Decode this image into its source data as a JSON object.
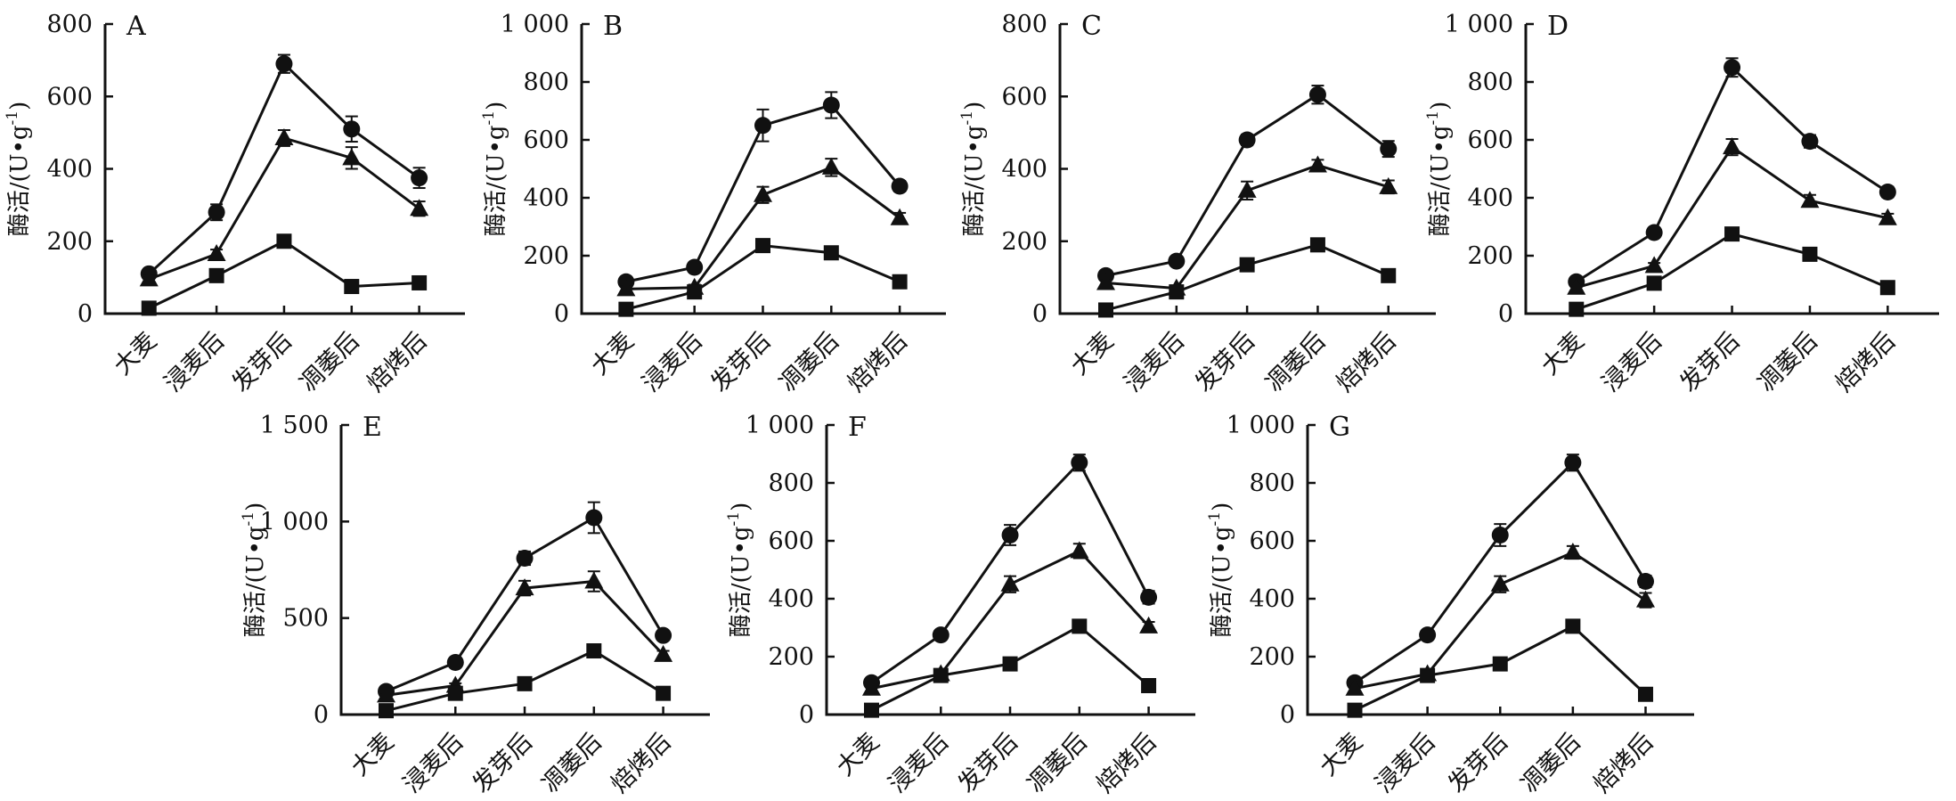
{
  "figure": {
    "ylabel": "酶活/(U•g⁻¹)",
    "x_categories": [
      "大麦",
      "浸麦后",
      "发芽后",
      "凋萎后",
      "焙烤后"
    ],
    "marker_legend": [
      "circle-series",
      "triangle-series",
      "square-series"
    ],
    "ink_color": "#111111",
    "background_color": "#ffffff"
  },
  "chart_data": [
    {
      "type": "line",
      "panel": "A",
      "ylabel": "酶活/(U•g⁻¹)",
      "categories": [
        "大麦",
        "浸麦后",
        "发芽后",
        "凋萎后",
        "焙烤后"
      ],
      "ylim": [
        0,
        800
      ],
      "yticks": [
        0,
        200,
        400,
        600,
        800
      ],
      "ytick_labels": [
        "0",
        "200",
        "400",
        "600",
        "800"
      ],
      "grid": false,
      "legend": "none",
      "series": [
        {
          "name": "circle-series",
          "marker": "circle",
          "values": [
            110,
            280,
            690,
            510,
            375
          ],
          "errors": [
            12,
            22,
            25,
            35,
            28
          ]
        },
        {
          "name": "triangle-series",
          "marker": "triangle",
          "values": [
            95,
            165,
            485,
            430,
            290
          ],
          "errors": [
            10,
            12,
            22,
            30,
            20
          ]
        },
        {
          "name": "square-series",
          "marker": "square",
          "values": [
            15,
            105,
            200,
            75,
            85
          ],
          "errors": [
            0,
            0,
            0,
            0,
            0
          ]
        }
      ]
    },
    {
      "type": "line",
      "panel": "B",
      "ylabel": "酶活/(U•g⁻¹)",
      "categories": [
        "大麦",
        "浸麦后",
        "发芽后",
        "凋萎后",
        "焙烤后"
      ],
      "ylim": [
        0,
        1000
      ],
      "yticks": [
        0,
        200,
        400,
        600,
        800,
        1000
      ],
      "ytick_labels": [
        "0",
        "200",
        "400",
        "600",
        "800",
        "1 000"
      ],
      "grid": false,
      "legend": "none",
      "series": [
        {
          "name": "circle-series",
          "marker": "circle",
          "values": [
            110,
            160,
            650,
            720,
            440
          ],
          "errors": [
            15,
            15,
            55,
            45,
            18
          ]
        },
        {
          "name": "triangle-series",
          "marker": "triangle",
          "values": [
            85,
            90,
            410,
            505,
            330
          ],
          "errors": [
            10,
            10,
            28,
            30,
            18
          ]
        },
        {
          "name": "square-series",
          "marker": "square",
          "values": [
            15,
            75,
            235,
            210,
            110
          ],
          "errors": [
            0,
            0,
            12,
            0,
            0
          ]
        }
      ]
    },
    {
      "type": "line",
      "panel": "C",
      "ylabel": "酶活/(U•g⁻¹)",
      "categories": [
        "大麦",
        "浸麦后",
        "发芽后",
        "凋萎后",
        "焙烤后"
      ],
      "ylim": [
        0,
        800
      ],
      "yticks": [
        0,
        200,
        400,
        600,
        800
      ],
      "ytick_labels": [
        "0",
        "200",
        "400",
        "600",
        "800"
      ],
      "grid": false,
      "legend": "none",
      "series": [
        {
          "name": "circle-series",
          "marker": "circle",
          "values": [
            105,
            145,
            480,
            605,
            455
          ],
          "errors": [
            12,
            10,
            15,
            25,
            22
          ]
        },
        {
          "name": "triangle-series",
          "marker": "triangle",
          "values": [
            85,
            70,
            340,
            410,
            350
          ],
          "errors": [
            8,
            8,
            25,
            15,
            18
          ]
        },
        {
          "name": "square-series",
          "marker": "square",
          "values": [
            10,
            60,
            135,
            190,
            105
          ],
          "errors": [
            0,
            0,
            0,
            0,
            0
          ]
        }
      ]
    },
    {
      "type": "line",
      "panel": "D",
      "ylabel": "酶活/(U•g⁻¹)",
      "categories": [
        "大麦",
        "浸麦后",
        "发芽后",
        "凋萎后",
        "焙烤后"
      ],
      "ylim": [
        0,
        1000
      ],
      "yticks": [
        0,
        200,
        400,
        600,
        800,
        1000
      ],
      "ytick_labels": [
        "0",
        "200",
        "400",
        "600",
        "800",
        "1 000"
      ],
      "grid": false,
      "legend": "none",
      "series": [
        {
          "name": "circle-series",
          "marker": "circle",
          "values": [
            110,
            280,
            850,
            595,
            420
          ],
          "errors": [
            12,
            15,
            32,
            22,
            18
          ]
        },
        {
          "name": "triangle-series",
          "marker": "triangle",
          "values": [
            90,
            165,
            575,
            390,
            330
          ],
          "errors": [
            10,
            10,
            28,
            20,
            15
          ]
        },
        {
          "name": "square-series",
          "marker": "square",
          "values": [
            15,
            105,
            275,
            205,
            90
          ],
          "errors": [
            0,
            0,
            0,
            0,
            0
          ]
        }
      ]
    },
    {
      "type": "line",
      "panel": "E",
      "ylabel": "酶活/(U•g⁻¹)",
      "categories": [
        "大麦",
        "浸麦后",
        "发芽后",
        "凋萎后",
        "焙烤后"
      ],
      "ylim": [
        0,
        1500
      ],
      "yticks": [
        0,
        500,
        1000,
        1500
      ],
      "ytick_labels": [
        "0",
        "500",
        "1 000",
        "1 500"
      ],
      "grid": false,
      "legend": "none",
      "series": [
        {
          "name": "circle-series",
          "marker": "circle",
          "values": [
            120,
            270,
            810,
            1020,
            410
          ],
          "errors": [
            15,
            18,
            35,
            80,
            25
          ]
        },
        {
          "name": "triangle-series",
          "marker": "triangle",
          "values": [
            100,
            150,
            655,
            690,
            310
          ],
          "errors": [
            12,
            12,
            38,
            52,
            20
          ]
        },
        {
          "name": "square-series",
          "marker": "square",
          "values": [
            20,
            110,
            160,
            330,
            110
          ],
          "errors": [
            0,
            0,
            0,
            0,
            0
          ]
        }
      ]
    },
    {
      "type": "line",
      "panel": "F",
      "ylabel": "酶活/(U•g⁻¹)",
      "categories": [
        "大麦",
        "浸麦后",
        "发芽后",
        "凋萎后",
        "焙烤后"
      ],
      "ylim": [
        0,
        1000
      ],
      "yticks": [
        0,
        200,
        400,
        600,
        800,
        1000
      ],
      "ytick_labels": [
        "0",
        "200",
        "400",
        "600",
        "800",
        "1 000"
      ],
      "grid": false,
      "legend": "none",
      "series": [
        {
          "name": "circle-series",
          "marker": "circle",
          "values": [
            110,
            275,
            620,
            870,
            405
          ],
          "errors": [
            12,
            15,
            35,
            28,
            22
          ]
        },
        {
          "name": "triangle-series",
          "marker": "triangle",
          "values": [
            90,
            140,
            450,
            565,
            305
          ],
          "errors": [
            10,
            10,
            28,
            25,
            15
          ]
        },
        {
          "name": "square-series",
          "marker": "square",
          "values": [
            15,
            135,
            175,
            305,
            100
          ],
          "errors": [
            0,
            0,
            0,
            0,
            0
          ]
        }
      ]
    },
    {
      "type": "line",
      "panel": "G",
      "ylabel": "酶活/(U•g⁻¹)",
      "categories": [
        "大麦",
        "浸麦后",
        "发芽后",
        "凋萎后",
        "焙烤后"
      ],
      "ylim": [
        0,
        1000
      ],
      "yticks": [
        0,
        200,
        400,
        600,
        800,
        1000
      ],
      "ytick_labels": [
        "0",
        "200",
        "400",
        "600",
        "800",
        "1 000"
      ],
      "grid": false,
      "legend": "none",
      "series": [
        {
          "name": "circle-series",
          "marker": "circle",
          "values": [
            110,
            275,
            620,
            870,
            460
          ],
          "errors": [
            12,
            15,
            38,
            28,
            20
          ]
        },
        {
          "name": "triangle-series",
          "marker": "triangle",
          "values": [
            90,
            140,
            450,
            560,
            395
          ],
          "errors": [
            10,
            10,
            28,
            22,
            25
          ]
        },
        {
          "name": "square-series",
          "marker": "square",
          "values": [
            15,
            135,
            175,
            305,
            70
          ],
          "errors": [
            0,
            0,
            0,
            0,
            0
          ]
        }
      ]
    }
  ]
}
